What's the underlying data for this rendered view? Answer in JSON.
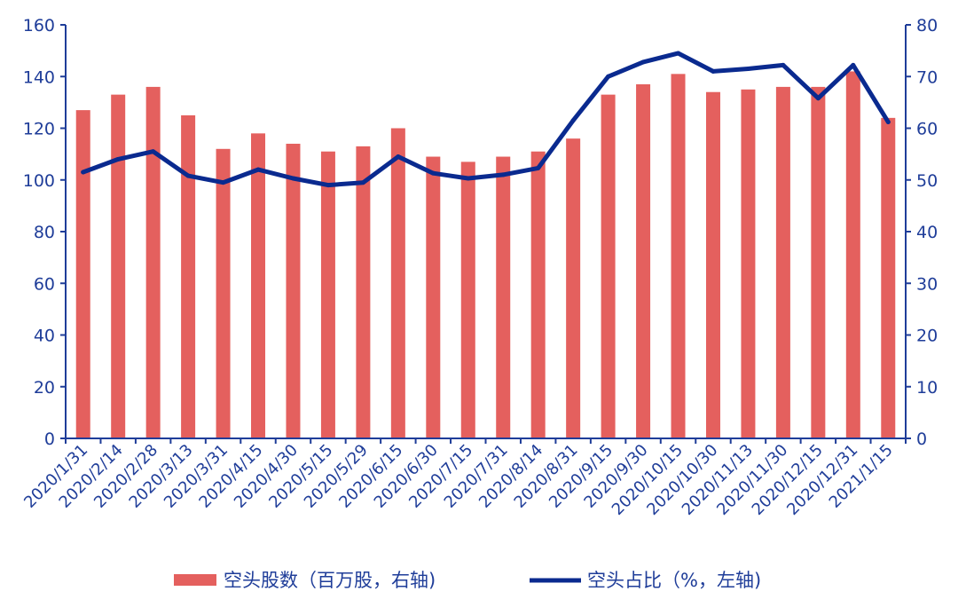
{
  "chart_data": {
    "type": "bar+line",
    "categories": [
      "2020/1/31",
      "2020/2/14",
      "2020/2/28",
      "2020/3/13",
      "2020/3/31",
      "2020/4/15",
      "2020/4/30",
      "2020/5/15",
      "2020/5/29",
      "2020/6/15",
      "2020/6/30",
      "2020/7/15",
      "2020/7/31",
      "2020/8/14",
      "2020/8/31",
      "2020/9/15",
      "2020/9/30",
      "2020/10/15",
      "2020/10/30",
      "2020/11/13",
      "2020/11/30",
      "2020/12/15",
      "2020/12/31",
      "2021/1/15"
    ],
    "left_axis": {
      "ticks": [
        "0",
        "20",
        "40",
        "60",
        "80",
        "100",
        "120",
        "140",
        "160"
      ],
      "ylim": [
        0,
        160
      ]
    },
    "right_axis": {
      "ticks": [
        "0",
        "10",
        "20",
        "30",
        "40",
        "50",
        "60",
        "70",
        "80"
      ],
      "ylim": [
        0,
        80
      ]
    },
    "series": [
      {
        "name": "空头股数（百万股，右轴)",
        "kind": "bar",
        "axis": "left",
        "color": "#e4605e",
        "values": [
          127,
          133,
          136,
          125,
          112,
          118,
          114,
          111,
          113,
          120,
          109,
          107,
          109,
          111,
          116,
          133,
          137,
          141,
          134,
          135,
          136,
          136,
          142,
          124
        ]
      },
      {
        "name": "空头占比（%，左轴)",
        "kind": "line",
        "axis": "right",
        "color": "#0a2a8f",
        "values": [
          51.5,
          54,
          55.5,
          50.8,
          49.5,
          52,
          50.3,
          49,
          49.5,
          54.5,
          51.3,
          50.3,
          51,
          52.3,
          61.5,
          70,
          72.8,
          74.5,
          71,
          71.5,
          72.2,
          65.8,
          72.2,
          61.2
        ]
      }
    ],
    "grid": false,
    "legend_position": "bottom"
  }
}
